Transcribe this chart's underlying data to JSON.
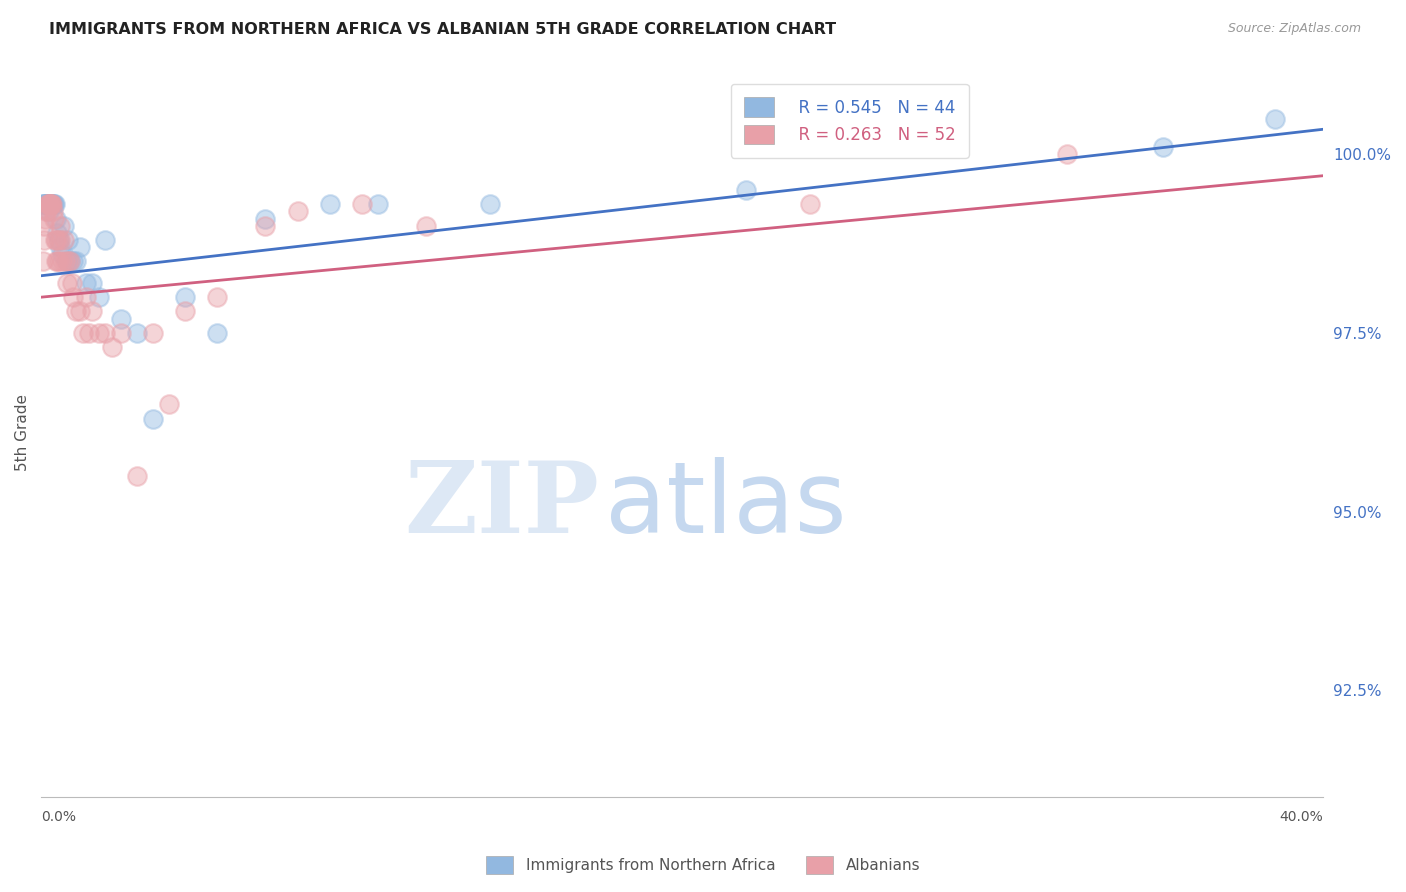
{
  "title": "IMMIGRANTS FROM NORTHERN AFRICA VS ALBANIAN 5TH GRADE CORRELATION CHART",
  "source": "Source: ZipAtlas.com",
  "ylabel": "5th Grade",
  "ylabel_right_ticks": [
    100.0,
    97.5,
    95.0,
    92.5
  ],
  "ylabel_right_labels": [
    "100.0%",
    "97.5%",
    "95.0%",
    "92.5%"
  ],
  "x_min": 0.0,
  "x_max": 40.0,
  "y_min": 91.0,
  "y_max": 101.2,
  "legend_blue_R": "0.545",
  "legend_blue_N": "44",
  "legend_pink_R": "0.263",
  "legend_pink_N": "52",
  "blue_color": "#92b8e0",
  "pink_color": "#e8a0a8",
  "blue_line_color": "#4472c4",
  "pink_line_color": "#d06080",
  "blue_x": [
    0.05,
    0.08,
    0.1,
    0.12,
    0.15,
    0.18,
    0.2,
    0.22,
    0.25,
    0.28,
    0.3,
    0.32,
    0.35,
    0.38,
    0.4,
    0.42,
    0.45,
    0.5,
    0.55,
    0.6,
    0.65,
    0.7,
    0.8,
    0.85,
    0.9,
    1.0,
    1.1,
    1.2,
    1.4,
    1.6,
    1.8,
    2.0,
    2.5,
    3.0,
    3.5,
    4.5,
    5.5,
    7.0,
    9.0,
    10.5,
    14.0,
    22.0,
    35.0,
    38.5
  ],
  "blue_y": [
    99.3,
    99.3,
    99.3,
    99.3,
    99.3,
    99.3,
    99.3,
    99.3,
    99.2,
    99.3,
    99.3,
    99.3,
    99.3,
    99.3,
    99.3,
    99.3,
    99.1,
    98.9,
    98.8,
    98.7,
    98.6,
    99.0,
    98.5,
    98.8,
    98.5,
    98.5,
    98.5,
    98.7,
    98.2,
    98.2,
    98.0,
    98.8,
    97.7,
    97.5,
    96.3,
    98.0,
    97.5,
    99.1,
    99.3,
    99.3,
    99.3,
    99.5,
    100.1,
    100.5
  ],
  "pink_x": [
    0.05,
    0.08,
    0.1,
    0.12,
    0.15,
    0.18,
    0.2,
    0.22,
    0.25,
    0.28,
    0.3,
    0.32,
    0.35,
    0.38,
    0.4,
    0.42,
    0.45,
    0.48,
    0.5,
    0.52,
    0.55,
    0.58,
    0.6,
    0.65,
    0.7,
    0.75,
    0.8,
    0.85,
    0.9,
    0.95,
    1.0,
    1.1,
    1.2,
    1.3,
    1.4,
    1.5,
    1.6,
    1.8,
    2.0,
    2.2,
    2.5,
    3.0,
    3.5,
    4.0,
    4.5,
    5.5,
    7.0,
    8.0,
    10.0,
    12.0,
    24.0,
    32.0
  ],
  "pink_y": [
    98.5,
    98.8,
    99.0,
    99.1,
    99.2,
    99.2,
    99.3,
    99.3,
    99.3,
    99.3,
    99.3,
    99.3,
    99.3,
    99.2,
    99.1,
    98.8,
    98.5,
    98.8,
    98.5,
    98.8,
    98.5,
    98.8,
    99.0,
    98.5,
    98.8,
    98.5,
    98.2,
    98.5,
    98.5,
    98.2,
    98.0,
    97.8,
    97.8,
    97.5,
    98.0,
    97.5,
    97.8,
    97.5,
    97.5,
    97.3,
    97.5,
    95.5,
    97.5,
    96.5,
    97.8,
    98.0,
    99.0,
    99.2,
    99.3,
    99.0,
    99.3,
    100.0
  ],
  "blue_trend": [
    98.3,
    100.35
  ],
  "pink_trend": [
    98.0,
    99.7
  ],
  "x_tick_positions": [
    0,
    5,
    10,
    15,
    20,
    25,
    30,
    35,
    40
  ]
}
